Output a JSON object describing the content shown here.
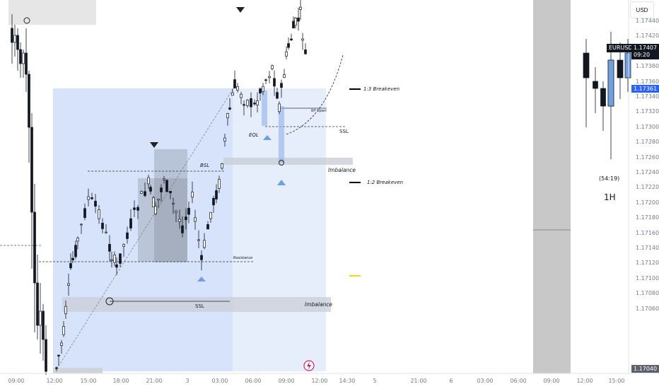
{
  "currency": "USD",
  "symbol": {
    "name": "EURUSD",
    "price": "1.17407",
    "countdown": "09:20"
  },
  "current_price_tag": "1.17361",
  "bottom_price_tag": "1.17040",
  "timeframe_label": "1H",
  "timer_label": "(54:19)",
  "y_axis_ticks": [
    "1.17440",
    "1.17420",
    "1.17400",
    "1.17380",
    "1.17360",
    "1.17340",
    "1.17320",
    "1.17300",
    "1.17280",
    "1.17260",
    "1.17240",
    "1.17220",
    "1.17200",
    "1.17180",
    "1.17160",
    "1.17140",
    "1.17120",
    "1.17100",
    "1.17080",
    "1.17060"
  ],
  "x_axis_ticks": [
    "09:00",
    "12:00",
    "15:00",
    "18:00",
    "21:00",
    "3",
    "03:00",
    "06:00",
    "09:00",
    "12:00",
    "14:30",
    "5",
    "21:00",
    "6",
    "03:00",
    "06:00",
    "09:00",
    "12:00",
    "15:00"
  ],
  "annotations": {
    "breakeven_13": "1:3 Breakeven",
    "breakeven_12": "1:2 Breakeven",
    "ny_open": "NY Open",
    "eql": "EQL",
    "ssl_top": "SSL",
    "bsl": "BSL",
    "imbalance_top": "Imbalance",
    "resistance": "Resistance",
    "ssl_bottom": "SSL",
    "imbalance_bottom": "Imbalance"
  },
  "colors": {
    "up_candle": "#ffffff",
    "down_candle": "#131722",
    "zone_blue": "#d4e2fb",
    "zone_blue_light": "#e8effc",
    "imbalance_gray": "#d1d4dc",
    "triangle_blue": "#6ea0e0",
    "price_tag_blue": "#2962ff",
    "symbol_tag": "#131722"
  },
  "icons": [
    "flash-icon",
    "triangle-down-icon",
    "triangle-up-icon"
  ]
}
